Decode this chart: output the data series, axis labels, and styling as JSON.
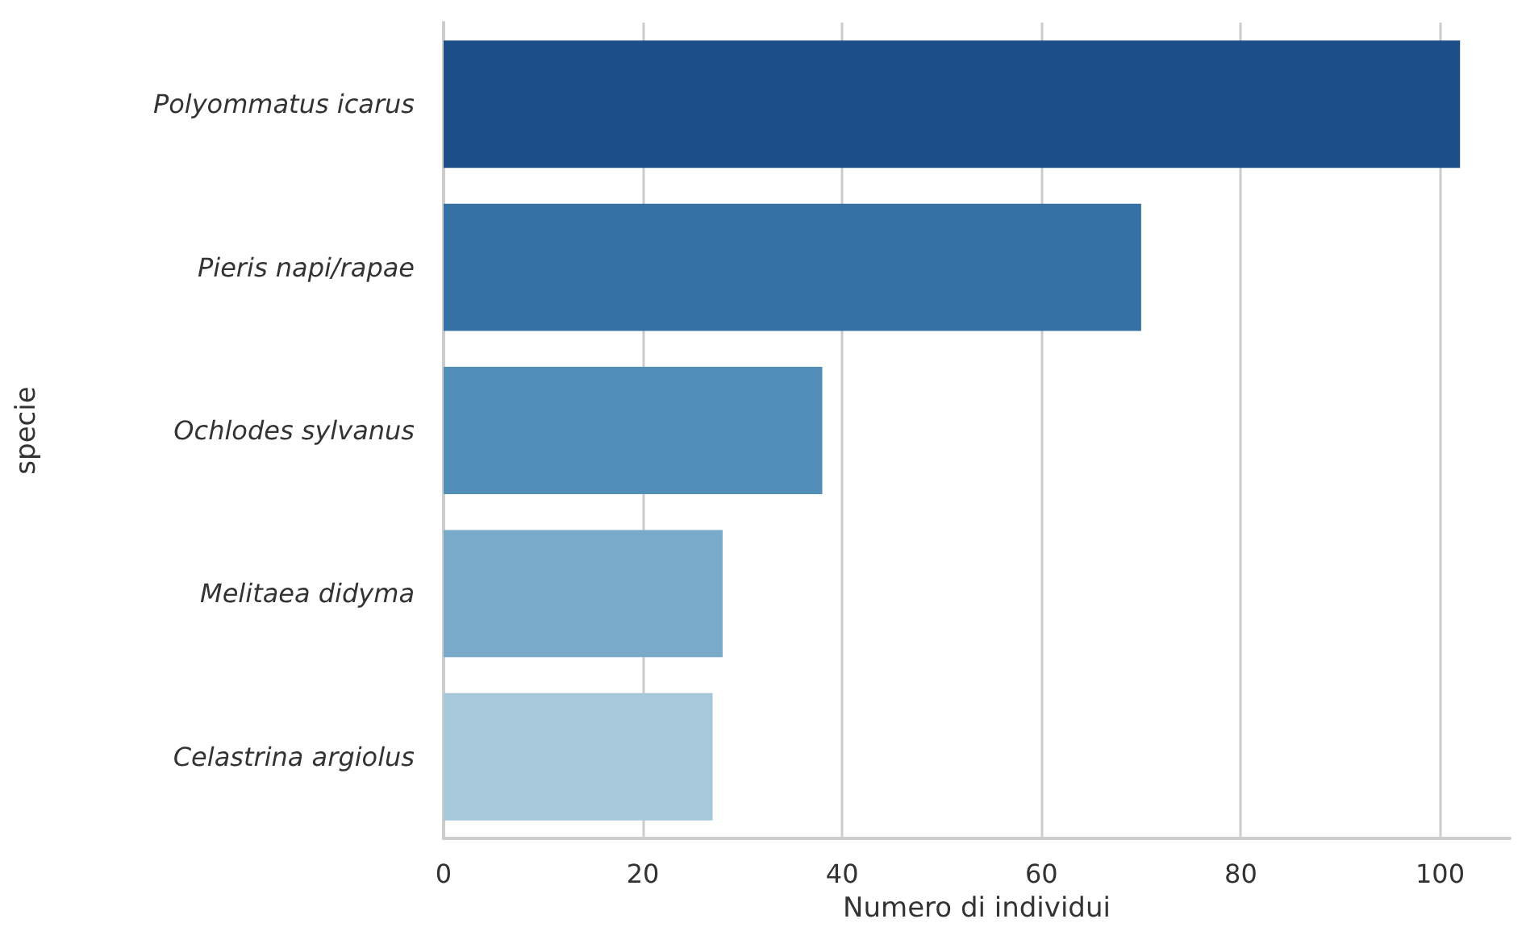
{
  "chart_data": {
    "type": "bar",
    "orientation": "horizontal",
    "xlabel": "Numero di individui",
    "ylabel": "specie",
    "categories": [
      "Polyommatus icarus",
      "Pieris napi/rapae",
      "Ochlodes sylvanus",
      "Melitaea didyma",
      "Celastrina argiolus"
    ],
    "values": [
      102,
      70,
      38,
      28,
      27
    ],
    "colors": [
      "#1c4f87",
      "#3470a3",
      "#528fb8",
      "#79aaca",
      "#a6c8da"
    ],
    "xlim": [
      0,
      107
    ],
    "xticks": [
      0,
      20,
      40,
      60,
      80,
      100
    ],
    "grid": "x"
  }
}
